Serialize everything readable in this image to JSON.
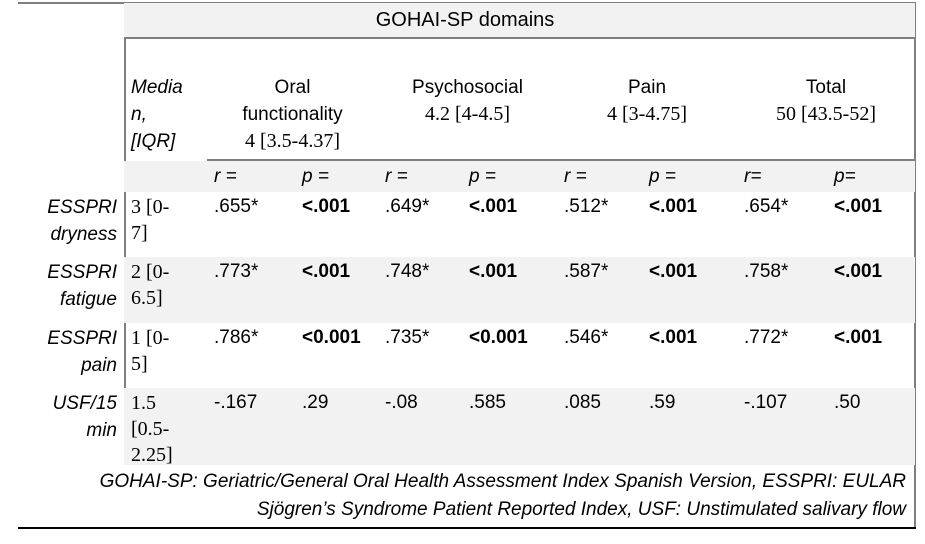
{
  "table": {
    "title": "GOHAI-SP domains",
    "median_label": "Media\nn,\n[IQR]",
    "domains": [
      {
        "name": "Oral\nfunctionality",
        "median": "4 [3.5-4.37]"
      },
      {
        "name": "Psychosocial",
        "median": "4.2 [4-4.5]"
      },
      {
        "name": "Pain",
        "median": "4 [3-4.75]"
      },
      {
        "name": "Total",
        "median": "50 [43.5-52]"
      }
    ],
    "stat_labels": [
      "r =",
      "p =",
      "r =",
      "p =",
      "r =",
      "p =",
      "r=",
      "p="
    ],
    "rows": [
      {
        "label": "ESSPRI\ndryness",
        "median": "3 [0-\n7]",
        "values": [
          ".655*",
          "<.001",
          ".649*",
          "<.001",
          ".512*",
          "<.001",
          ".654*",
          "<.001"
        ]
      },
      {
        "label": "ESSPRI\nfatigue",
        "median": "2 [0-\n6.5]",
        "values": [
          ".773*",
          "<.001",
          ".748*",
          "<.001",
          ".587*",
          "<.001",
          ".758*",
          "<.001"
        ]
      },
      {
        "label": "ESSPRI\npain",
        "median": "1 [0-\n5]",
        "values": [
          ".786*",
          "<0.001",
          ".735*",
          "<0.001",
          ".546*",
          "<.001",
          ".772*",
          "<.001"
        ]
      },
      {
        "label": "USF/15\nmin",
        "median": "1.5\n[0.5-\n2.25]",
        "values": [
          "-.167",
          ".29",
          "-.08",
          ".585",
          ".085",
          ".59",
          "-.107",
          ".50"
        ]
      }
    ],
    "footnote": "GOHAI-SP: Geriatric/General Oral Health Assessment Index Spanish Version, ESSPRI: EULAR\nSjögren’s Syndrome Patient Reported Index, USF: Unstimulated salivary flow"
  },
  "colors": {
    "band_background": "#f2f2f2",
    "border_gray": "#7f7f7f",
    "border_bottom": "#000000"
  }
}
